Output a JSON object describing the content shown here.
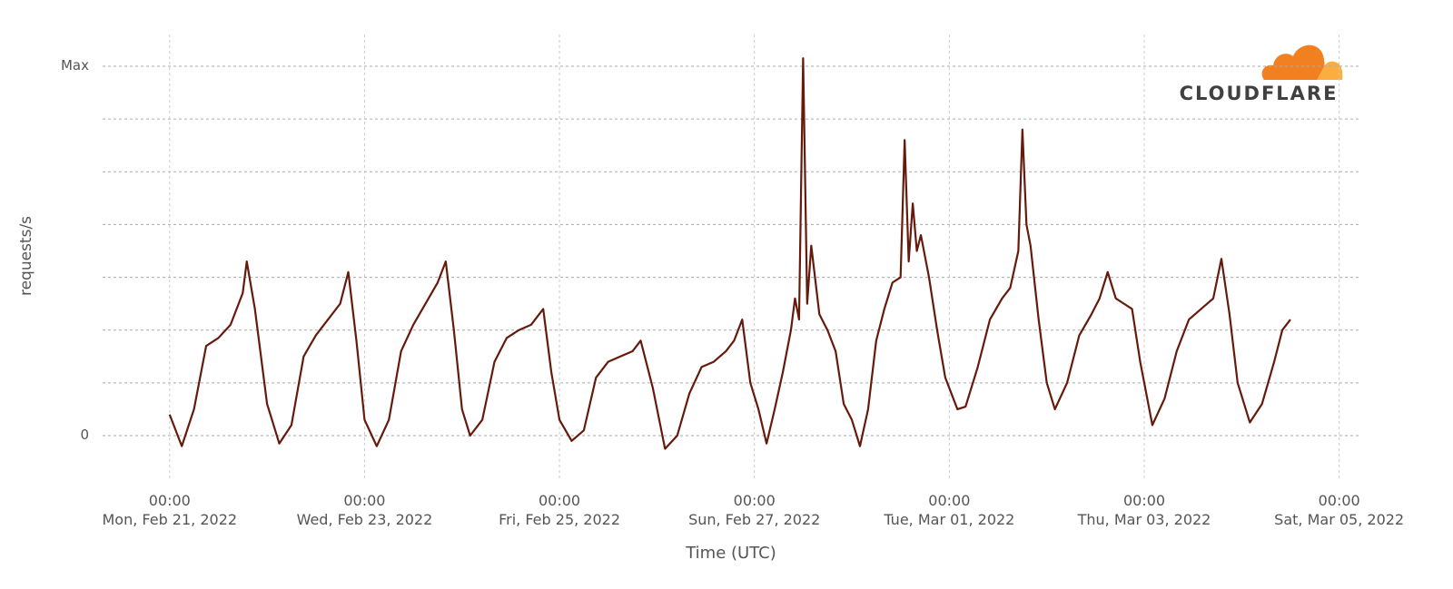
{
  "chart_data": {
    "type": "line",
    "logo_text": "CLOUDFLARE",
    "ylabel": "requests/s",
    "xlabel": "Time (UTC)",
    "color": "#661a0b",
    "ylim": [
      0,
      7
    ],
    "yticks": [
      0,
      {
        "value": 7,
        "label": "Max"
      }
    ],
    "ygrid": [
      0,
      1,
      2,
      3,
      4,
      5,
      6,
      7
    ],
    "xlim": [
      "2022-02-20T07:30",
      "2022-03-05T05:00"
    ],
    "xticks": [
      {
        "value": "2022-02-21T00:00",
        "label": [
          "00:00",
          "Mon, Feb 21, 2022"
        ]
      },
      {
        "value": "2022-02-23T00:00",
        "label": [
          "00:00",
          "Wed, Feb 23, 2022"
        ]
      },
      {
        "value": "2022-02-25T00:00",
        "label": [
          "00:00",
          "Fri, Feb 25, 2022"
        ]
      },
      {
        "value": "2022-02-27T00:00",
        "label": [
          "00:00",
          "Sun, Feb 27, 2022"
        ]
      },
      {
        "value": "2022-03-01T00:00",
        "label": [
          "00:00",
          "Tue, Mar 01, 2022"
        ]
      },
      {
        "value": "2022-03-03T00:00",
        "label": [
          "00:00",
          "Thu, Mar 03, 2022"
        ]
      },
      {
        "value": "2022-03-05T00:00",
        "label": [
          "00:00",
          "Sat, Mar 05, 2022"
        ]
      }
    ],
    "x": [
      "2022-02-21T00:00",
      "2022-02-21T03:00",
      "2022-02-21T06:00",
      "2022-02-21T09:00",
      "2022-02-21T12:00",
      "2022-02-21T15:00",
      "2022-02-21T18:00",
      "2022-02-21T19:00",
      "2022-02-21T21:00",
      "2022-02-22T00:00",
      "2022-02-22T03:00",
      "2022-02-22T06:00",
      "2022-02-22T09:00",
      "2022-02-22T12:00",
      "2022-02-22T15:00",
      "2022-02-22T18:00",
      "2022-02-22T20:00",
      "2022-02-22T22:00",
      "2022-02-23T00:00",
      "2022-02-23T03:00",
      "2022-02-23T06:00",
      "2022-02-23T09:00",
      "2022-02-23T12:00",
      "2022-02-23T15:00",
      "2022-02-23T18:00",
      "2022-02-23T20:00",
      "2022-02-23T22:00",
      "2022-02-24T00:00",
      "2022-02-24T02:00",
      "2022-02-24T05:00",
      "2022-02-24T08:00",
      "2022-02-24T11:00",
      "2022-02-24T14:00",
      "2022-02-24T17:00",
      "2022-02-24T20:00",
      "2022-02-24T22:00",
      "2022-02-25T00:00",
      "2022-02-25T03:00",
      "2022-02-25T06:00",
      "2022-02-25T09:00",
      "2022-02-25T12:00",
      "2022-02-25T15:00",
      "2022-02-25T18:00",
      "2022-02-25T20:00",
      "2022-02-25T23:00",
      "2022-02-26T02:00",
      "2022-02-26T05:00",
      "2022-02-26T08:00",
      "2022-02-26T11:00",
      "2022-02-26T14:00",
      "2022-02-26T17:00",
      "2022-02-26T19:00",
      "2022-02-26T21:00",
      "2022-02-26T23:00",
      "2022-02-27T01:00",
      "2022-02-27T03:00",
      "2022-02-27T05:00",
      "2022-02-27T07:00",
      "2022-02-27T09:00",
      "2022-02-27T10:00",
      "2022-02-27T11:00",
      "2022-02-27T12:00",
      "2022-02-27T13:00",
      "2022-02-27T14:00",
      "2022-02-27T16:00",
      "2022-02-27T18:00",
      "2022-02-27T20:00",
      "2022-02-27T22:00",
      "2022-02-28T00:00",
      "2022-02-28T02:00",
      "2022-02-28T04:00",
      "2022-02-28T06:00",
      "2022-02-28T08:00",
      "2022-02-28T10:00",
      "2022-02-28T12:00",
      "2022-02-28T13:00",
      "2022-02-28T14:00",
      "2022-02-28T15:00",
      "2022-02-28T16:00",
      "2022-02-28T17:00",
      "2022-02-28T19:00",
      "2022-02-28T21:00",
      "2022-02-28T23:00",
      "2022-03-01T02:00",
      "2022-03-01T04:00",
      "2022-03-01T07:00",
      "2022-03-01T10:00",
      "2022-03-01T13:00",
      "2022-03-01T15:00",
      "2022-03-01T17:00",
      "2022-03-01T18:00",
      "2022-03-01T19:00",
      "2022-03-01T20:00",
      "2022-03-01T22:00",
      "2022-03-02T00:00",
      "2022-03-02T02:00",
      "2022-03-02T05:00",
      "2022-03-02T08:00",
      "2022-03-02T11:00",
      "2022-03-02T13:00",
      "2022-03-02T15:00",
      "2022-03-02T17:00",
      "2022-03-02T19:00",
      "2022-03-02T21:00",
      "2022-03-02T23:00",
      "2022-03-03T02:00",
      "2022-03-03T05:00",
      "2022-03-03T08:00",
      "2022-03-03T11:00",
      "2022-03-03T14:00",
      "2022-03-03T17:00",
      "2022-03-03T19:00",
      "2022-03-03T21:00",
      "2022-03-03T23:00",
      "2022-03-04T02:00",
      "2022-03-04T05:00",
      "2022-03-04T08:00",
      "2022-03-04T10:00",
      "2022-03-04T12:00"
    ],
    "values": [
      0.4,
      -0.2,
      0.5,
      1.7,
      1.85,
      2.1,
      2.7,
      3.3,
      2.4,
      0.6,
      -0.15,
      0.2,
      1.5,
      1.9,
      2.2,
      2.5,
      3.1,
      1.8,
      0.3,
      -0.2,
      0.3,
      1.6,
      2.1,
      2.5,
      2.9,
      3.3,
      2.0,
      0.5,
      0.0,
      0.3,
      1.4,
      1.85,
      2.0,
      2.1,
      2.4,
      1.2,
      0.3,
      -0.1,
      0.1,
      1.1,
      1.4,
      1.5,
      1.6,
      1.8,
      0.9,
      -0.25,
      0.0,
      0.8,
      1.3,
      1.4,
      1.6,
      1.8,
      2.2,
      1.0,
      0.5,
      -0.15,
      0.5,
      1.2,
      2.0,
      2.6,
      2.2,
      7.15,
      2.5,
      3.6,
      2.3,
      2.0,
      1.6,
      0.6,
      0.3,
      -0.2,
      0.5,
      1.8,
      2.4,
      2.9,
      3.0,
      5.6,
      3.3,
      4.4,
      3.5,
      3.8,
      3.0,
      2.0,
      1.1,
      0.5,
      0.55,
      1.3,
      2.2,
      2.6,
      2.8,
      3.5,
      5.8,
      4.0,
      3.6,
      2.2,
      1.0,
      0.5,
      1.0,
      1.9,
      2.3,
      2.6,
      3.1,
      2.6,
      2.5,
      2.4,
      1.4,
      0.2,
      0.7,
      1.6,
      2.2,
      2.4,
      2.6,
      3.35,
      2.3,
      1.0,
      0.25,
      0.6,
      1.4,
      2.0,
      2.2
    ]
  }
}
